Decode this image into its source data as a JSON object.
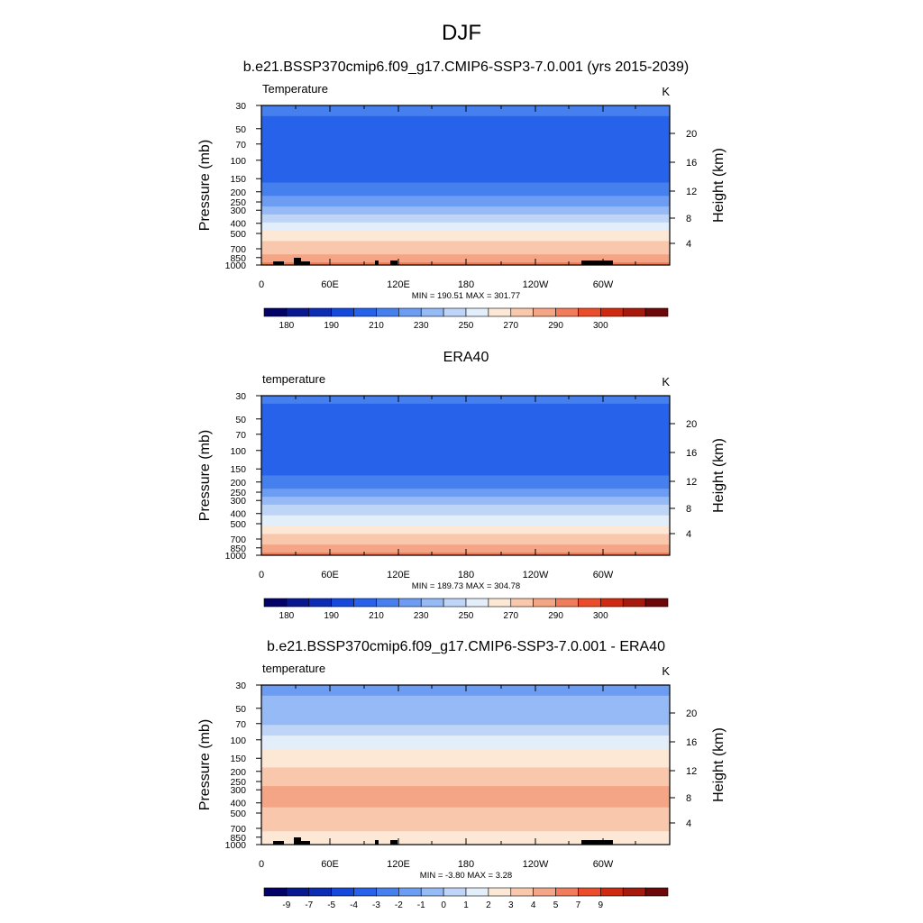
{
  "main_title": "DJF",
  "chart_data": [
    {
      "type": "contour",
      "title": "b.e21.BSSP370cmip6.f09_g17.CMIP6-SSP3-7.0.001 (yrs 2015-2039)",
      "left_label": "Temperature",
      "units": "K",
      "ylabel": "Pressure (mb)",
      "y2label": "Height (km)",
      "x_ticks": [
        "0",
        "60E",
        "120E",
        "180",
        "120W",
        "60W"
      ],
      "y_ticks": [
        "30",
        "50",
        "70",
        "100",
        "150",
        "200",
        "250",
        "300",
        "400",
        "500",
        "700",
        "850",
        "1000"
      ],
      "y2_ticks": [
        "20",
        "16",
        "12",
        "8",
        "4"
      ],
      "stats": "MIN = 190.51  MAX = 301.77",
      "min": 190.51,
      "max": 301.77,
      "field_by_level": [
        {
          "p": 30,
          "v": 213
        },
        {
          "p": 50,
          "v": 207
        },
        {
          "p": 70,
          "v": 202
        },
        {
          "p": 100,
          "v": 201
        },
        {
          "p": 150,
          "v": 208
        },
        {
          "p": 200,
          "v": 215
        },
        {
          "p": 250,
          "v": 226
        },
        {
          "p": 300,
          "v": 236
        },
        {
          "p": 400,
          "v": 252
        },
        {
          "p": 500,
          "v": 262
        },
        {
          "p": 700,
          "v": 276
        },
        {
          "p": 850,
          "v": 284
        },
        {
          "p": 1000,
          "v": 293
        }
      ],
      "colorbar": {
        "levels": [
          175,
          180,
          185,
          190,
          200,
          210,
          220,
          230,
          240,
          250,
          260,
          270,
          280,
          290,
          295,
          300,
          305
        ],
        "labels": [
          "180",
          "190",
          "210",
          "230",
          "250",
          "270",
          "290",
          "300"
        ]
      }
    },
    {
      "type": "contour",
      "title": "ERA40",
      "left_label": "temperature",
      "units": "K",
      "ylabel": "Pressure (mb)",
      "y2label": "Height (km)",
      "x_ticks": [
        "0",
        "60E",
        "120E",
        "180",
        "120W",
        "60W"
      ],
      "y_ticks": [
        "30",
        "50",
        "70",
        "100",
        "150",
        "200",
        "250",
        "300",
        "400",
        "500",
        "700",
        "850",
        "1000"
      ],
      "y2_ticks": [
        "20",
        "16",
        "12",
        "8",
        "4"
      ],
      "stats": "MIN = 189.73  MAX = 304.78",
      "min": 189.73,
      "max": 304.78,
      "field_by_level": [
        {
          "p": 30,
          "v": 212
        },
        {
          "p": 50,
          "v": 206
        },
        {
          "p": 70,
          "v": 202
        },
        {
          "p": 100,
          "v": 200
        },
        {
          "p": 150,
          "v": 206
        },
        {
          "p": 200,
          "v": 213
        },
        {
          "p": 250,
          "v": 224
        },
        {
          "p": 300,
          "v": 234
        },
        {
          "p": 400,
          "v": 249
        },
        {
          "p": 500,
          "v": 259
        },
        {
          "p": 700,
          "v": 274
        },
        {
          "p": 850,
          "v": 283
        },
        {
          "p": 1000,
          "v": 293
        }
      ],
      "colorbar": {
        "levels": [
          175,
          180,
          185,
          190,
          200,
          210,
          220,
          230,
          240,
          250,
          260,
          270,
          280,
          290,
          295,
          300,
          305
        ],
        "labels": [
          "180",
          "190",
          "210",
          "230",
          "250",
          "270",
          "290",
          "300"
        ]
      }
    },
    {
      "type": "contour",
      "title": "b.e21.BSSP370cmip6.f09_g17.CMIP6-SSP3-7.0.001 - ERA40",
      "left_label": "temperature",
      "units": "K",
      "ylabel": "Pressure (mb)",
      "y2label": "Height (km)",
      "x_ticks": [
        "0",
        "60E",
        "120E",
        "180",
        "120W",
        "60W"
      ],
      "y_ticks": [
        "30",
        "50",
        "70",
        "100",
        "150",
        "200",
        "250",
        "300",
        "400",
        "500",
        "700",
        "850",
        "1000"
      ],
      "y2_ticks": [
        "20",
        "16",
        "12",
        "8",
        "4"
      ],
      "stats": "MIN =  -3.80  MAX =   3.28",
      "min": -3.8,
      "max": 3.28,
      "field_by_level": [
        {
          "p": 30,
          "v": -3.5
        },
        {
          "p": 50,
          "v": -2.5
        },
        {
          "p": 70,
          "v": -2.2
        },
        {
          "p": 100,
          "v": -0.5
        },
        {
          "p": 150,
          "v": 0.5
        },
        {
          "p": 200,
          "v": 1.2
        },
        {
          "p": 250,
          "v": 1.6
        },
        {
          "p": 300,
          "v": 2.2
        },
        {
          "p": 400,
          "v": 2.4
        },
        {
          "p": 500,
          "v": 1.6
        },
        {
          "p": 700,
          "v": 1.2
        },
        {
          "p": 850,
          "v": 0.6
        },
        {
          "p": 1000,
          "v": 0.3
        }
      ],
      "colorbar": {
        "levels": [
          -10,
          -9,
          -8,
          -7,
          -6,
          -5,
          -4,
          -3,
          -2,
          -1,
          0,
          1,
          2,
          3,
          4,
          5,
          7,
          9,
          11
        ],
        "labels": [
          "-9",
          "-7",
          "-5",
          "-4",
          "-3",
          "-2",
          "-1",
          "0",
          "1",
          "2",
          "3",
          "4",
          "5",
          "7",
          "9"
        ]
      }
    }
  ],
  "colors": {
    "cbar_17": [
      "#030267",
      "#0a1d9a",
      "#0d35c4",
      "#1456e8",
      "#2c6ff0",
      "#4d8af0",
      "#78a8f3",
      "#a0c2f6",
      "#cde0fa",
      "#fde8d6",
      "#f9c8ac",
      "#f4a585",
      "#f07c5b",
      "#eb4d2a",
      "#cf2a10",
      "#a61a0d",
      "#6c0808"
    ],
    "cbar_19": [
      "#030267",
      "#08188f",
      "#0d2cb4",
      "#1449dc",
      "#2763ea",
      "#4680ef",
      "#6c9df2",
      "#95baf5",
      "#bed5f8",
      "#e3eefb",
      "#fde8d6",
      "#f9c8ac",
      "#f4a585",
      "#f07c5b",
      "#eb4d2a",
      "#cf2a10",
      "#a61a0d",
      "#6c0808"
    ]
  }
}
